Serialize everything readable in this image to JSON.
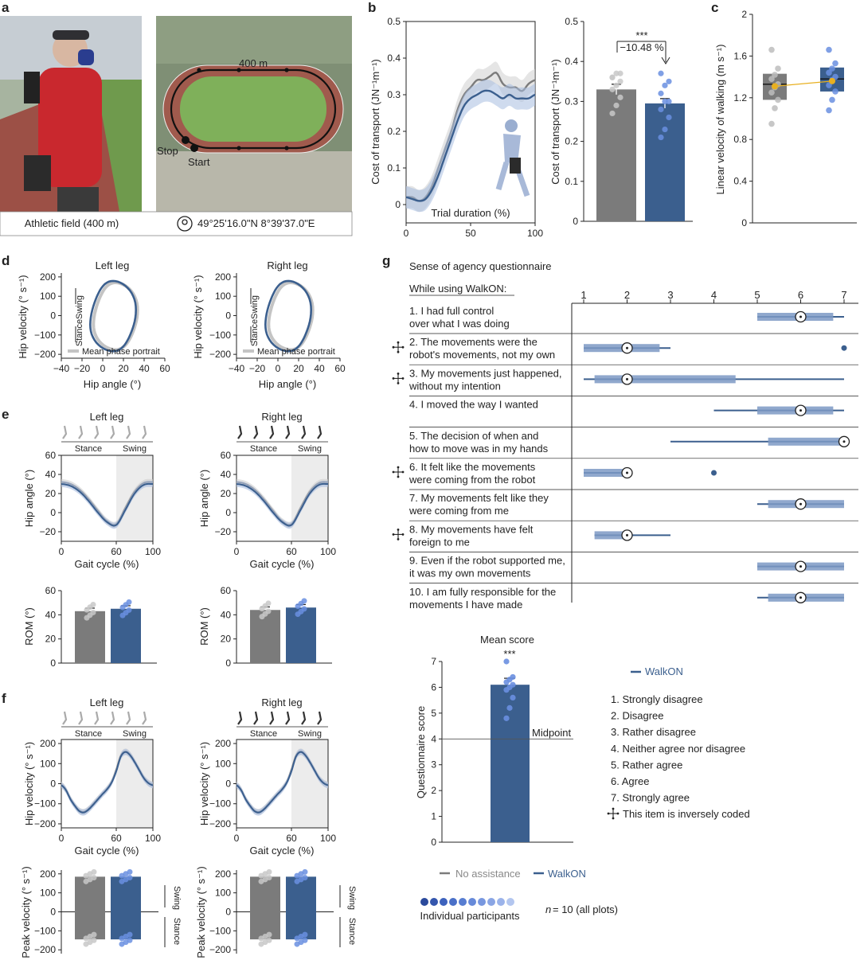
{
  "colors": {
    "walkon": "#3b5f8e",
    "none": "#7b7b7b",
    "band_walkon": "#a8bde0",
    "band_none": "#cfcfcf",
    "swing_bg": "#ececec",
    "accent": "#e8b020"
  },
  "panel_labels": [
    "a",
    "b",
    "c",
    "d",
    "e",
    "f",
    "g"
  ],
  "panel_a": {
    "caption_field": "Athletic field (400 m)",
    "caption_coords": "49°25'16.0\"N 8°39'37.0\"E",
    "track_label": "400 m",
    "stop_label": "Stop",
    "start_label": "Start",
    "pin_icon": "location-pin-icon"
  },
  "chart_data": [
    {
      "id": "b_trace",
      "type": "line",
      "xlabel": "Trial duration (%)",
      "ylabel": "Cost of transport (JN⁻¹m⁻¹)",
      "xlim": [
        0,
        100
      ],
      "ylim": [
        -0.05,
        0.5
      ],
      "xticks": [
        "0",
        "50",
        "100"
      ],
      "yticks": [
        "0",
        "0.1",
        "0.2",
        "0.3",
        "0.4",
        "0.5"
      ],
      "x": [
        0,
        5,
        10,
        15,
        20,
        25,
        30,
        35,
        40,
        45,
        50,
        55,
        60,
        65,
        70,
        75,
        80,
        85,
        90,
        95,
        100
      ],
      "series": [
        {
          "values": [
            0.02,
            0.02,
            0.01,
            0.02,
            0.05,
            0.1,
            0.15,
            0.2,
            0.26,
            0.3,
            0.32,
            0.34,
            0.34,
            0.35,
            0.36,
            0.33,
            0.32,
            0.32,
            0.31,
            0.33,
            0.34
          ]
        },
        {
          "values": [
            0.02,
            0.015,
            0.01,
            0.015,
            0.04,
            0.08,
            0.13,
            0.18,
            0.23,
            0.27,
            0.29,
            0.3,
            0.31,
            0.31,
            0.3,
            0.29,
            0.3,
            0.29,
            0.29,
            0.29,
            0.3
          ]
        }
      ]
    },
    {
      "id": "b_bar",
      "type": "bar",
      "ylabel": "Cost of transport (JN⁻¹m⁻¹)",
      "ylim": [
        0,
        0.5
      ],
      "yticks": [
        "0",
        "0.1",
        "0.2",
        "0.3",
        "0.4",
        "0.5"
      ],
      "values": [
        0.33,
        0.295
      ],
      "sem": [
        0.013,
        0.012
      ],
      "points": [
        [
          0.27,
          0.29,
          0.31,
          0.33,
          0.34,
          0.35,
          0.36,
          0.37,
          0.37,
          0.36
        ],
        [
          0.21,
          0.23,
          0.26,
          0.28,
          0.3,
          0.3,
          0.32,
          0.34,
          0.35,
          0.37
        ]
      ],
      "significance": "***",
      "annotation": "−10.48 %"
    },
    {
      "id": "c_box",
      "type": "box",
      "ylabel": "Linear velocity of walking (m s⁻¹)",
      "ylim": [
        0,
        2
      ],
      "yticks": [
        "0",
        "0.4",
        "0.8",
        "1.2",
        "1.6",
        "2"
      ],
      "boxes": [
        {
          "q1": 1.18,
          "median": 1.33,
          "q3": 1.43,
          "mean": 1.31
        },
        {
          "q1": 1.26,
          "median": 1.38,
          "q3": 1.49,
          "mean": 1.36
        }
      ],
      "points": [
        [
          0.95,
          1.1,
          1.18,
          1.25,
          1.3,
          1.33,
          1.38,
          1.42,
          1.48,
          1.66
        ],
        [
          1.08,
          1.18,
          1.26,
          1.32,
          1.37,
          1.4,
          1.44,
          1.48,
          1.53,
          1.66
        ]
      ]
    },
    {
      "id": "d",
      "type": "line",
      "xlabel": "Hip angle (°)",
      "ylabel": "Hip velocity (° s⁻¹)",
      "xlim": [
        -40,
        60
      ],
      "ylim": [
        -220,
        220
      ],
      "xticks": [
        "−40",
        "−20",
        "0",
        "20",
        "40",
        "60"
      ],
      "yticks": [
        "−200",
        "−100",
        "0",
        "100",
        "200"
      ],
      "titles": [
        "Left leg",
        "Right leg"
      ],
      "legend": "Mean phase portrait",
      "swing_label": "Swing",
      "stance_label": "Stance"
    },
    {
      "id": "e",
      "type": "line",
      "xlabel": "Gait cycle (%)",
      "ylabel": "Hip angle (°)",
      "xlim": [
        0,
        100
      ],
      "ylim": [
        -30,
        60
      ],
      "xticks": [
        "0",
        "60",
        "100"
      ],
      "yticks": [
        "−20",
        "0",
        "20",
        "40",
        "60"
      ],
      "titles": [
        "Left leg",
        "Right leg"
      ],
      "phase_labels": [
        "Stance",
        "Swing"
      ],
      "x": [
        0,
        10,
        20,
        30,
        40,
        50,
        60,
        70,
        80,
        90,
        100
      ],
      "series": [
        {
          "values": [
            32,
            30,
            24,
            14,
            2,
            -9,
            -12,
            5,
            22,
            31,
            32
          ]
        },
        {
          "values": [
            30,
            28,
            22,
            12,
            0,
            -10,
            -13,
            3,
            20,
            29,
            30
          ]
        }
      ]
    },
    {
      "id": "e_rom",
      "type": "bar",
      "ylabel": "ROM (°)",
      "ylim": [
        0,
        60
      ],
      "yticks": [
        "0",
        "20",
        "40",
        "60"
      ],
      "values_left": [
        43,
        45
      ],
      "values_right": [
        44,
        46
      ]
    },
    {
      "id": "f",
      "type": "line",
      "xlabel": "Gait cycle (%)",
      "ylabel": "Hip velocity (° s⁻¹)",
      "xlim": [
        0,
        100
      ],
      "ylim": [
        -220,
        220
      ],
      "xticks": [
        "0",
        "60",
        "100"
      ],
      "yticks": [
        "−200",
        "−100",
        "0",
        "100",
        "200"
      ],
      "titles": [
        "Left leg",
        "Right leg"
      ],
      "phase_labels": [
        "Stance",
        "Swing"
      ],
      "x": [
        0,
        5,
        10,
        15,
        20,
        25,
        30,
        35,
        40,
        45,
        50,
        55,
        60,
        65,
        70,
        75,
        80,
        85,
        90,
        95,
        100
      ],
      "series": [
        {
          "values": [
            -5,
            -30,
            -75,
            -110,
            -135,
            -140,
            -125,
            -100,
            -75,
            -50,
            -25,
            10,
            70,
            140,
            160,
            145,
            110,
            70,
            30,
            5,
            -5
          ]
        },
        {
          "values": [
            -8,
            -32,
            -78,
            -112,
            -138,
            -143,
            -128,
            -104,
            -78,
            -52,
            -28,
            6,
            62,
            135,
            158,
            142,
            108,
            68,
            28,
            3,
            -8
          ]
        }
      ]
    },
    {
      "id": "f_peak",
      "type": "bar",
      "ylabel": "Peak velocity (° s⁻¹)",
      "ylim": [
        -220,
        220
      ],
      "yticks": [
        "−200",
        "−100",
        "0",
        "100",
        "200"
      ],
      "values_pos": [
        185,
        185
      ],
      "values_neg": [
        -145,
        -145
      ],
      "swing_label": "Swing",
      "stance_label": "Stance"
    },
    {
      "id": "g_questionnaire",
      "type": "boxplot",
      "title": "Sense of agency questionnaire",
      "subtitle": "While using WalkON:",
      "xlim": [
        1,
        7
      ],
      "xticks": [
        "1",
        "2",
        "3",
        "4",
        "5",
        "6",
        "7"
      ],
      "items": [
        {
          "text1": "1. I had full control",
          "text2": "over what I was doing",
          "inverse": false,
          "whisker": [
            5,
            7
          ],
          "box": [
            5,
            6.75
          ],
          "median": 6,
          "outliers": []
        },
        {
          "text1": "2. The movements were the",
          "text2": "robot's movements, not my own",
          "inverse": true,
          "whisker": [
            1,
            3
          ],
          "box": [
            1,
            2.75
          ],
          "median": 2,
          "outliers": [
            7
          ]
        },
        {
          "text1": "3. My movements just happened,",
          "text2": "without my intention",
          "inverse": true,
          "whisker": [
            1,
            7
          ],
          "box": [
            1.25,
            4.5
          ],
          "median": 2,
          "outliers": []
        },
        {
          "text1": "4. I moved the way I wanted",
          "text2": "",
          "inverse": false,
          "whisker": [
            4,
            7
          ],
          "box": [
            5,
            6.75
          ],
          "median": 6,
          "outliers": []
        },
        {
          "text1": "5. The decision of when and",
          "text2": "how to move was in my hands",
          "inverse": false,
          "whisker": [
            3,
            7
          ],
          "box": [
            5.25,
            7
          ],
          "median": 7,
          "outliers": []
        },
        {
          "text1": "6. It felt like the movements",
          "text2": "were coming from the robot",
          "inverse": true,
          "whisker": [
            1,
            2
          ],
          "box": [
            1,
            2
          ],
          "median": 2,
          "outliers": [
            4
          ]
        },
        {
          "text1": "7. My movements felt like they",
          "text2": "were coming from me",
          "inverse": false,
          "whisker": [
            5,
            7
          ],
          "box": [
            5.25,
            7
          ],
          "median": 6,
          "outliers": []
        },
        {
          "text1": "8. My movements have felt",
          "text2": "foreign to me",
          "inverse": true,
          "whisker": [
            1.25,
            3
          ],
          "box": [
            1.25,
            2
          ],
          "median": 2,
          "outliers": []
        },
        {
          "text1": "9. Even if the robot supported me,",
          "text2": "it was my own movements",
          "inverse": false,
          "whisker": [
            5,
            7
          ],
          "box": [
            5,
            7
          ],
          "median": 6,
          "outliers": []
        },
        {
          "text1": "10. I am fully responsible for the",
          "text2": "movements I have made",
          "inverse": false,
          "whisker": [
            5,
            7
          ],
          "box": [
            5.25,
            7
          ],
          "median": 6,
          "outliers": []
        }
      ]
    },
    {
      "id": "g_mean",
      "type": "bar",
      "title": "Mean score",
      "ylabel": "Questionnaire score",
      "ylim": [
        0,
        7
      ],
      "yticks": [
        "0",
        "1",
        "2",
        "3",
        "4",
        "5",
        "6",
        "7"
      ],
      "value": 6.1,
      "sem": 0.25,
      "points": [
        4.8,
        5.2,
        5.6,
        5.9,
        6.0,
        6.1,
        6.2,
        6.3,
        6.4,
        7.0
      ],
      "significance": "***",
      "midpoint": 4,
      "midpoint_label": "Midpoint"
    }
  ],
  "legend_g": {
    "walkon": "WalkON",
    "scale": [
      "1. Strongly disagree",
      "2. Disagree",
      "3. Rather disagree",
      "4. Neither agree nor disagree",
      "5. Rather agree",
      "6. Agree",
      "7. Strongly agree"
    ],
    "inverse": "This item is inversely coded"
  },
  "legend_bottom": {
    "none": "No assistance",
    "walkon": "WalkON",
    "participants": "Individual participants",
    "n_label": "n",
    "n_text": " = 10 (all plots)"
  }
}
